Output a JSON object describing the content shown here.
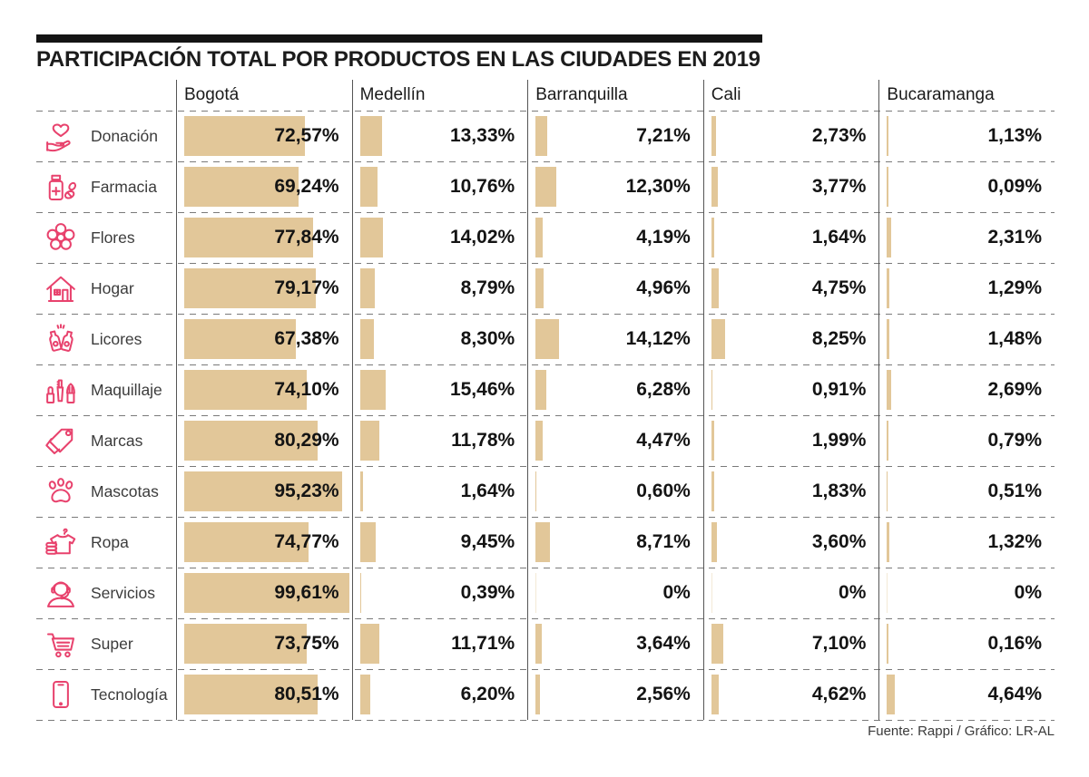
{
  "title": "PARTICIPACIÓN TOTAL POR PRODUCTOS EN LAS CIUDADES EN 2019",
  "source_note": "Fuente: Rappi / Gráfico: LR-AL",
  "colors": {
    "accent_pink": "#e8426d",
    "bar_tan": "#e2c799",
    "title_black": "#1c1c1c"
  },
  "chart_data": {
    "type": "bar",
    "orientation": "horizontal",
    "title": "PARTICIPACIÓN TOTAL POR PRODUCTOS EN LAS CIUDADES EN 2019",
    "value_unit": "%",
    "xlim": [
      0,
      100
    ],
    "grid": "dashed-row-separators",
    "legend_position": "column-headers",
    "columns": [
      "Bogotá",
      "Medellín",
      "Barranquilla",
      "Cali",
      "Bucaramanga"
    ],
    "rows": [
      {
        "category": "Donación",
        "icon": "donation-heart-hand-icon",
        "values": [
          72.57,
          13.33,
          7.21,
          2.73,
          1.13
        ],
        "labels": [
          "72,57%",
          "13,33%",
          "7,21%",
          "2,73%",
          "1,13%"
        ]
      },
      {
        "category": "Farmacia",
        "icon": "pharmacy-bottle-pills-icon",
        "values": [
          69.24,
          10.76,
          12.3,
          3.77,
          0.09
        ],
        "labels": [
          "69,24%",
          "10,76%",
          "12,30%",
          "3,77%",
          "0,09%"
        ]
      },
      {
        "category": "Flores",
        "icon": "flower-icon",
        "values": [
          77.84,
          14.02,
          4.19,
          1.64,
          2.31
        ],
        "labels": [
          "77,84%",
          "14,02%",
          "4,19%",
          "1,64%",
          "2,31%"
        ]
      },
      {
        "category": "Hogar",
        "icon": "house-icon",
        "values": [
          79.17,
          8.79,
          4.96,
          4.75,
          1.29
        ],
        "labels": [
          "79,17%",
          "8,79%",
          "4,96%",
          "4,75%",
          "1,29%"
        ]
      },
      {
        "category": "Licores",
        "icon": "liquor-bottles-icon",
        "values": [
          67.38,
          8.3,
          14.12,
          8.25,
          1.48
        ],
        "labels": [
          "67,38%",
          "8,30%",
          "14,12%",
          "8,25%",
          "1,48%"
        ]
      },
      {
        "category": "Maquillaje",
        "icon": "makeup-icon",
        "values": [
          74.1,
          15.46,
          6.28,
          0.91,
          2.69
        ],
        "labels": [
          "74,10%",
          "15,46%",
          "6,28%",
          "0,91%",
          "2,69%"
        ]
      },
      {
        "category": "Marcas",
        "icon": "price-tag-icon",
        "values": [
          80.29,
          11.78,
          4.47,
          1.99,
          0.79
        ],
        "labels": [
          "80,29%",
          "11,78%",
          "4,47%",
          "1,99%",
          "0,79%"
        ]
      },
      {
        "category": "Mascotas",
        "icon": "paw-icon",
        "values": [
          95.23,
          1.64,
          0.6,
          1.83,
          0.51
        ],
        "labels": [
          "95,23%",
          "1,64%",
          "0,60%",
          "1,83%",
          "0,51%"
        ]
      },
      {
        "category": "Ropa",
        "icon": "tshirt-clothes-icon",
        "values": [
          74.77,
          9.45,
          8.71,
          3.6,
          1.32
        ],
        "labels": [
          "74,77%",
          "9,45%",
          "8,71%",
          "3,60%",
          "1,32%"
        ]
      },
      {
        "category": "Servicios",
        "icon": "headset-agent-icon",
        "values": [
          99.61,
          0.39,
          0,
          0,
          0
        ],
        "labels": [
          "99,61%",
          "0,39%",
          "0%",
          "0%",
          "0%"
        ]
      },
      {
        "category": "Super",
        "icon": "shopping-cart-icon",
        "values": [
          73.75,
          11.71,
          3.64,
          7.1,
          0.16
        ],
        "labels": [
          "73,75%",
          "11,71%",
          "3,64%",
          "7,10%",
          "0,16%"
        ]
      },
      {
        "category": "Tecnología",
        "icon": "smartphone-icon",
        "values": [
          80.51,
          6.2,
          2.56,
          4.62,
          4.64
        ],
        "labels": [
          "80,51%",
          "6,20%",
          "2,56%",
          "4,62%",
          "4,64%"
        ]
      }
    ],
    "source": "Fuente: Rappi / Gráfico: LR-AL"
  }
}
